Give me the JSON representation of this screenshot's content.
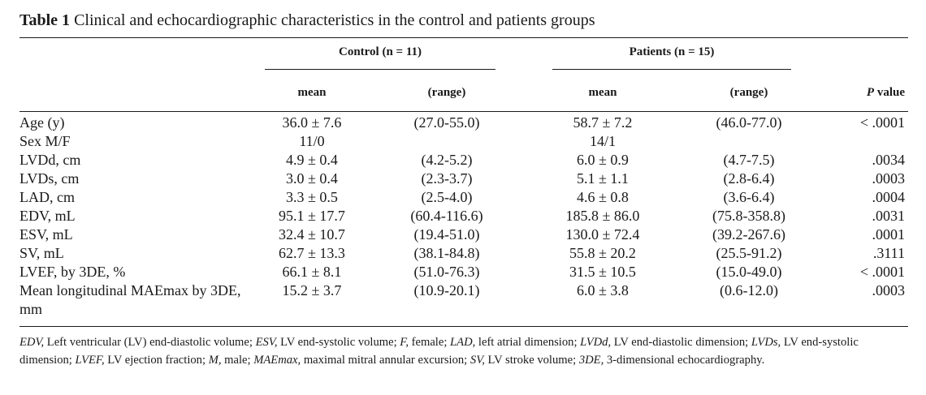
{
  "caption": {
    "label": "Table 1",
    "text": "Clinical and echocardiographic characteristics in the control and patients groups"
  },
  "groups": {
    "control": "Control (n = 11)",
    "patients": "Patients (n = 15)"
  },
  "columns": {
    "mean": "mean",
    "range": "(range)",
    "p_italic": "P",
    "p_rest": "value"
  },
  "rows": [
    {
      "label": "Age (y)",
      "c_mean": "36.0 ± 7.6",
      "c_range": "(27.0-55.0)",
      "p_mean": "58.7 ± 7.2",
      "p_range": "(46.0-77.0)",
      "p": "< .0001"
    },
    {
      "label": "Sex M/F",
      "c_mean": "11/0",
      "c_range": "",
      "p_mean": "14/1",
      "p_range": "",
      "p": ""
    },
    {
      "label": "LVDd, cm",
      "c_mean": "4.9 ± 0.4",
      "c_range": "(4.2-5.2)",
      "p_mean": "6.0 ± 0.9",
      "p_range": "(4.7-7.5)",
      "p": ".0034"
    },
    {
      "label": "LVDs, cm",
      "c_mean": "3.0 ± 0.4",
      "c_range": "(2.3-3.7)",
      "p_mean": "5.1 ± 1.1",
      "p_range": "(2.8-6.4)",
      "p": ".0003"
    },
    {
      "label": "LAD, cm",
      "c_mean": "3.3 ± 0.5",
      "c_range": "(2.5-4.0)",
      "p_mean": "4.6 ± 0.8",
      "p_range": "(3.6-6.4)",
      "p": ".0004"
    },
    {
      "label": "EDV, mL",
      "c_mean": "95.1 ± 17.7",
      "c_range": "(60.4-116.6)",
      "p_mean": "185.8 ± 86.0",
      "p_range": "(75.8-358.8)",
      "p": ".0031"
    },
    {
      "label": "ESV, mL",
      "c_mean": "32.4 ± 10.7",
      "c_range": "(19.4-51.0)",
      "p_mean": "130.0 ± 72.4",
      "p_range": "(39.2-267.6)",
      "p": ".0001"
    },
    {
      "label": "SV, mL",
      "c_mean": "62.7 ± 13.3",
      "c_range": "(38.1-84.8)",
      "p_mean": "55.8 ± 20.2",
      "p_range": "(25.5-91.2)",
      "p": ".3111"
    },
    {
      "label": "LVEF, by 3DE, %",
      "c_mean": "66.1 ± 8.1",
      "c_range": "(51.0-76.3)",
      "p_mean": "31.5 ± 10.5",
      "p_range": "(15.0-49.0)",
      "p": "< .0001"
    },
    {
      "label": "Mean longitudinal MAEmax by 3DE, mm",
      "c_mean": "15.2 ± 3.7",
      "c_range": "(10.9-20.1)",
      "p_mean": "6.0 ± 3.8",
      "p_range": "(0.6-12.0)",
      "p": ".0003"
    }
  ],
  "footnote": [
    {
      "abbr": "EDV,",
      "def": " Left ventricular (LV) end-diastolic volume; "
    },
    {
      "abbr": "ESV,",
      "def": " LV end-systolic volume; "
    },
    {
      "abbr": "F,",
      "def": " female; "
    },
    {
      "abbr": "LAD,",
      "def": " left atrial dimension; "
    },
    {
      "abbr": "LVDd,",
      "def": " LV end-diastolic dimension; "
    },
    {
      "abbr": "LVDs,",
      "def": " LV end-systolic dimension; "
    },
    {
      "abbr": "LVEF,",
      "def": " LV ejection fraction; "
    },
    {
      "abbr": "M,",
      "def": " male; "
    },
    {
      "abbr": "MAEmax,",
      "def": " maximal mitral annular excursion; "
    },
    {
      "abbr": "SV,",
      "def": " LV stroke volume; "
    },
    {
      "abbr": "3DE,",
      "def": " 3-dimensional echocardiography."
    }
  ]
}
